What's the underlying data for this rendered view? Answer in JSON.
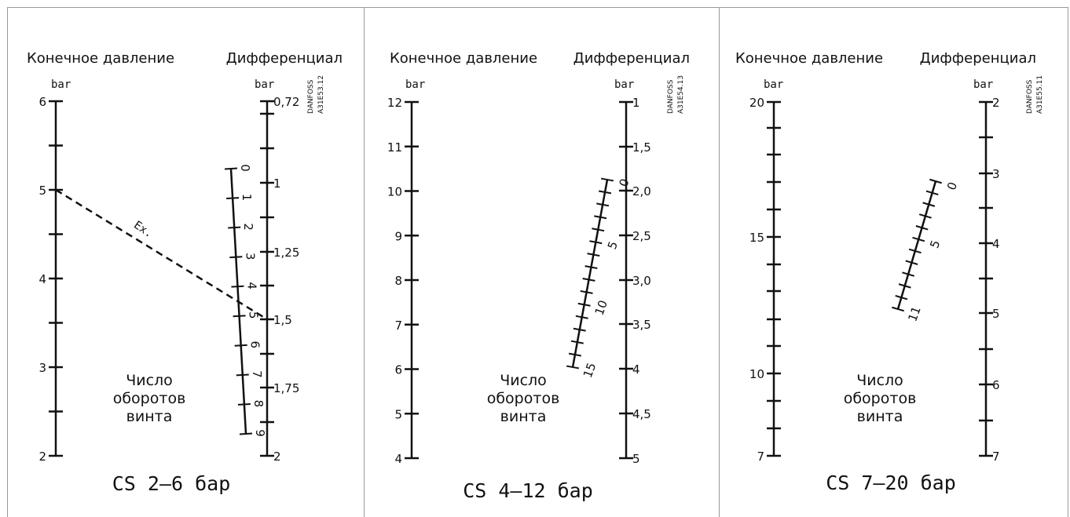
{
  "panels": [
    {
      "id": "cs-2-6",
      "caption": "CS 2–6 бар",
      "left_title": "Конечное давление",
      "right_title": "Дифференциал",
      "left_unit": "bar",
      "right_unit": "bar",
      "code": [
        "DANFOSS",
        "A31E53.12"
      ],
      "center_label": [
        "Число",
        "оборотов",
        "винта"
      ],
      "left_scale": {
        "labels": [
          "6",
          "5",
          "4",
          "3",
          "2"
        ]
      },
      "right_scale": {
        "labels": [
          "0,72",
          "1",
          "1,25",
          "1,5",
          "1,75",
          "2"
        ]
      },
      "turns_scale": {
        "labels": [
          "0",
          "1",
          "2",
          "3",
          "4",
          "5",
          "6",
          "7",
          "8",
          "9"
        ]
      },
      "example": {
        "label": "Ex.",
        "from_pressure": "5",
        "to_differential": "1,5"
      }
    },
    {
      "id": "cs-4-12",
      "caption": "CS 4–12 бар",
      "left_title": "Конечное давление",
      "right_title": "Дифференциал",
      "left_unit": "bar",
      "right_unit": "bar",
      "code": [
        "DANFOSS",
        "A31E54.13"
      ],
      "center_label": [
        "Число",
        "оборотов",
        "винта"
      ],
      "left_scale": {
        "labels": [
          "12",
          "11",
          "10",
          "9",
          "8",
          "7",
          "6",
          "5",
          "4"
        ]
      },
      "right_scale": {
        "labels": [
          "1",
          "1,5",
          "2,0",
          "2,5",
          "3,0",
          "3,5",
          "4",
          "4,5",
          "5"
        ]
      },
      "turns_scale": {
        "labels": [
          "0",
          "5",
          "10",
          "15"
        ]
      }
    },
    {
      "id": "cs-7-20",
      "caption": "CS 7–20 бар",
      "left_title": "Конечное давление",
      "right_title": "Дифференциал",
      "left_unit": "bar",
      "right_unit": "bar",
      "code": [
        "DANFOSS",
        "A31E55.11"
      ],
      "center_label": [
        "Число",
        "оборотов",
        "винта"
      ],
      "left_scale": {
        "labels": [
          "20",
          "15",
          "10",
          "7"
        ]
      },
      "right_scale": {
        "labels": [
          "2",
          "3",
          "4",
          "5",
          "6",
          "7"
        ]
      },
      "turns_scale": {
        "labels": [
          "0",
          "5",
          "11"
        ]
      }
    }
  ]
}
